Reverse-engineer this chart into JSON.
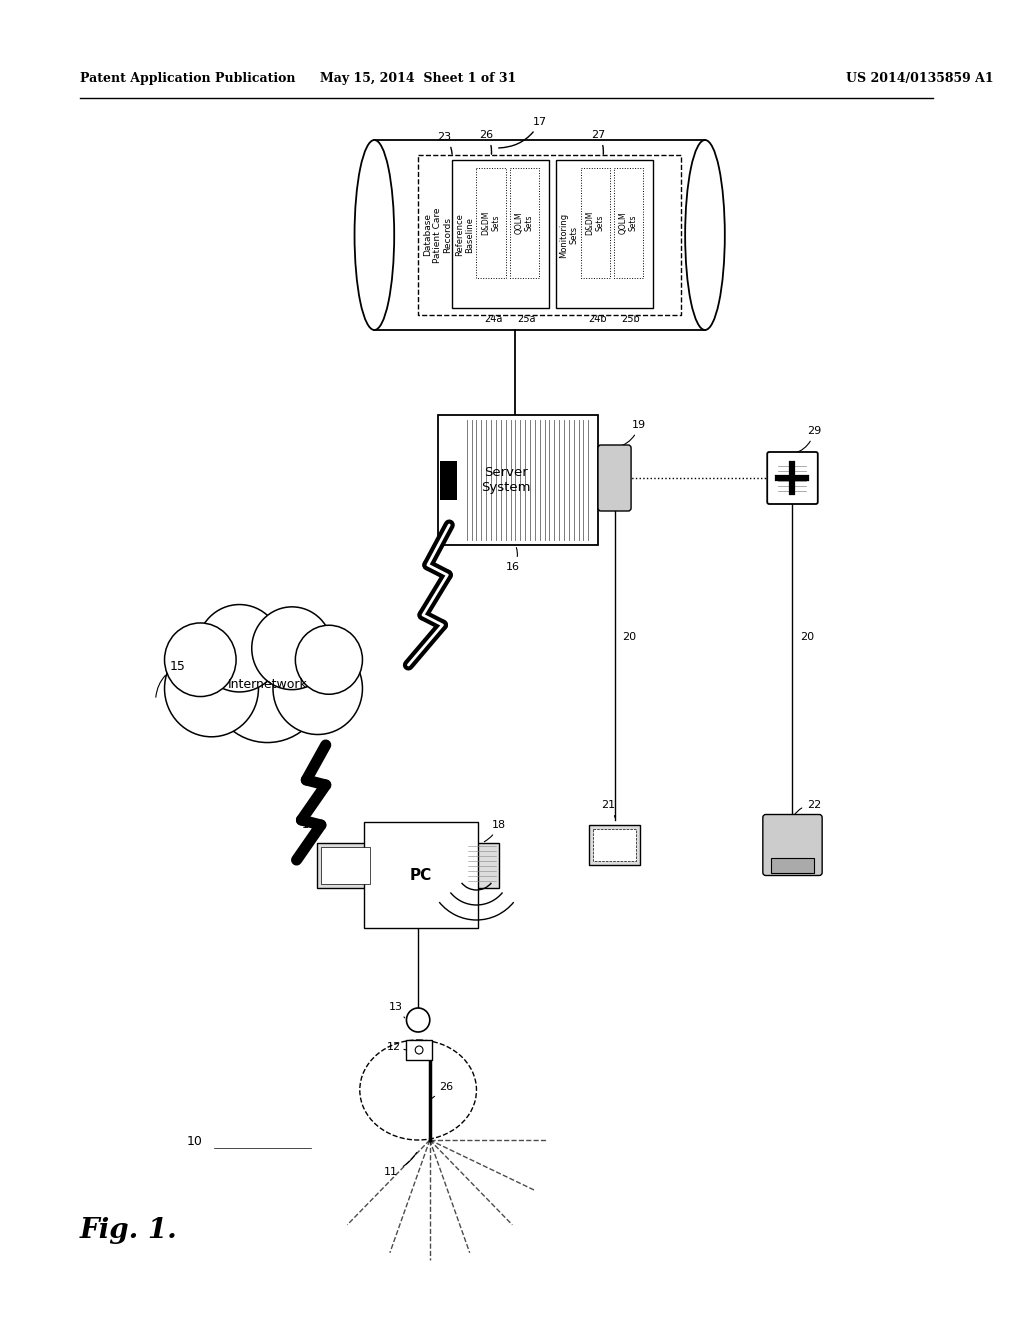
{
  "header_left": "Patent Application Publication",
  "header_mid": "May 15, 2014  Sheet 1 of 31",
  "header_right": "US 2014/0135859 A1",
  "fig_label": "Fig. 1.",
  "bg_color": "#ffffff",
  "lc": "#000000"
}
